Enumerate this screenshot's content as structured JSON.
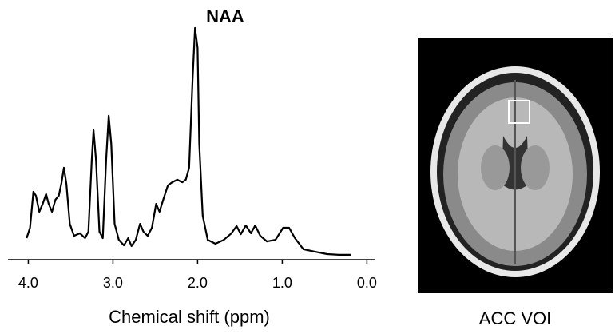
{
  "chart_data": {
    "type": "line",
    "annotation": "NAA",
    "x_label": "Chemical shift (ppm)",
    "x": [
      4.02,
      3.98,
      3.94,
      3.91,
      3.87,
      3.83,
      3.79,
      3.76,
      3.72,
      3.68,
      3.64,
      3.61,
      3.58,
      3.55,
      3.51,
      3.46,
      3.39,
      3.33,
      3.29,
      3.25,
      3.23,
      3.2,
      3.16,
      3.12,
      3.08,
      3.05,
      3.02,
      2.98,
      2.93,
      2.87,
      2.82,
      2.78,
      2.73,
      2.68,
      2.64,
      2.59,
      2.54,
      2.49,
      2.45,
      2.4,
      2.35,
      2.3,
      2.24,
      2.18,
      2.14,
      2.1,
      2.06,
      2.03,
      2.0,
      1.98,
      1.94,
      1.88,
      1.79,
      1.69,
      1.6,
      1.54,
      1.49,
      1.43,
      1.37,
      1.32,
      1.26,
      1.18,
      1.08,
      0.99,
      0.92,
      0.85,
      0.75,
      0.61,
      0.47,
      0.33,
      0.19
    ],
    "series": [
      {
        "color": "#000000",
        "values": [
          9.3,
          13.8,
          29.3,
          27.6,
          20.7,
          24.1,
          28.3,
          24.1,
          20.7,
          25.9,
          27.6,
          32.8,
          39.7,
          32.8,
          15.5,
          10.3,
          11.4,
          9.3,
          12.1,
          43.1,
          55.9,
          43.1,
          12.1,
          9.3,
          43.1,
          62.1,
          50,
          15.5,
          8.6,
          6.2,
          9.3,
          5.9,
          8.6,
          15.5,
          12.1,
          10.3,
          13.8,
          24.1,
          20.7,
          26.6,
          32.1,
          33.4,
          34.5,
          33.4,
          34.5,
          39.7,
          77.6,
          100,
          91.4,
          50,
          19,
          8.6,
          6.9,
          8.6,
          11.4,
          14.5,
          11,
          14.8,
          11.4,
          14.8,
          10.3,
          7.9,
          8.6,
          13.8,
          13.8,
          9.3,
          4.5,
          3.4,
          2.4,
          2.1,
          2.1
        ]
      }
    ],
    "xlim": [
      4.24,
      -0.1
    ],
    "xticks": [
      {
        "value": 4,
        "label": "4.0"
      },
      {
        "value": 3,
        "label": "3.0"
      },
      {
        "value": 2,
        "label": "2.0"
      },
      {
        "value": 1,
        "label": "1.0"
      },
      {
        "value": 0,
        "label": "0.0"
      }
    ],
    "ylim": [
      0,
      100
    ]
  },
  "image": {
    "label": "ACC VOI"
  }
}
